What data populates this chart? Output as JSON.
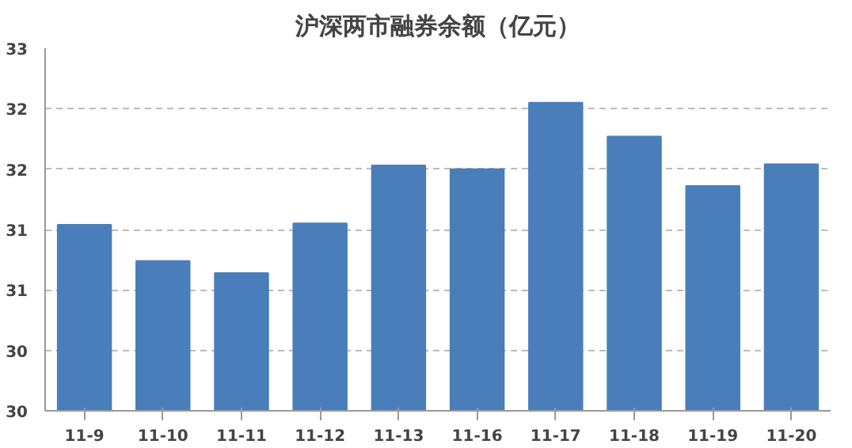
{
  "chart_data": {
    "type": "bar",
    "title": "沪深两市融券余额（亿元）",
    "categories": [
      "11-9",
      "11-10",
      "11-11",
      "11-12",
      "11-13",
      "11-16",
      "11-17",
      "11-18",
      "11-19",
      "11-20"
    ],
    "values": [
      31.44,
      31.14,
      31.04,
      31.45,
      31.93,
      31.9,
      32.45,
      32.17,
      31.76,
      31.94
    ],
    "color": "#4a7ebb",
    "ylim": [
      29.9,
      32.9
    ],
    "yticks": [
      {
        "value": 29.9,
        "label": "30"
      },
      {
        "value": 30.4,
        "label": "30"
      },
      {
        "value": 30.9,
        "label": "31"
      },
      {
        "value": 31.4,
        "label": "31"
      },
      {
        "value": 31.9,
        "label": "32"
      },
      {
        "value": 32.4,
        "label": "32"
      },
      {
        "value": 32.9,
        "label": "33"
      }
    ],
    "grid": "y"
  }
}
